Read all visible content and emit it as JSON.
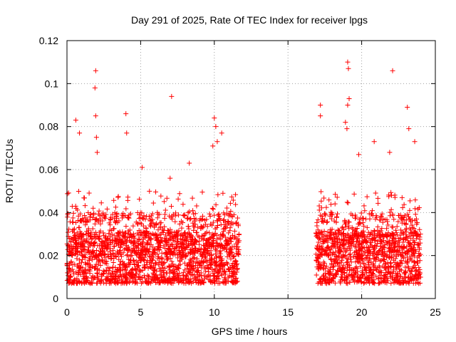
{
  "chart_data": {
    "type": "scatter",
    "title": "Day 291 of 2025, Rate Of TEC Index for receiver lpgs",
    "xlabel": "GPS time / hours",
    "ylabel": "ROTI / TECUs",
    "xlim": [
      0,
      25
    ],
    "ylim": [
      0,
      0.12
    ],
    "xticks": [
      0,
      5,
      10,
      15,
      20,
      25
    ],
    "xtick_labels": [
      "0",
      "5",
      "10",
      "15",
      "20",
      "25"
    ],
    "yticks": [
      0,
      0.02,
      0.04,
      0.06,
      0.08,
      0.1,
      0.12
    ],
    "ytick_labels": [
      "0",
      "0.02",
      "0.04",
      "0.06",
      "0.08",
      "0.1",
      "0.12"
    ],
    "grid": true,
    "marker": "+",
    "color": "#ff0000",
    "series": [
      {
        "name": "ROTI",
        "coverage": [
          [
            0.0,
            11.7
          ],
          [
            16.9,
            24.0
          ]
        ],
        "typical_range": [
          0.005,
          0.045
        ],
        "notable_points": [
          {
            "x": 0.6,
            "y": 0.083
          },
          {
            "x": 0.85,
            "y": 0.077
          },
          {
            "x": 1.95,
            "y": 0.106
          },
          {
            "x": 1.9,
            "y": 0.098
          },
          {
            "x": 1.95,
            "y": 0.085
          },
          {
            "x": 2.0,
            "y": 0.075
          },
          {
            "x": 2.05,
            "y": 0.068
          },
          {
            "x": 4.0,
            "y": 0.086
          },
          {
            "x": 4.05,
            "y": 0.077
          },
          {
            "x": 5.1,
            "y": 0.061
          },
          {
            "x": 7.1,
            "y": 0.094
          },
          {
            "x": 7.0,
            "y": 0.056
          },
          {
            "x": 8.3,
            "y": 0.063
          },
          {
            "x": 10.0,
            "y": 0.084
          },
          {
            "x": 10.1,
            "y": 0.08
          },
          {
            "x": 10.2,
            "y": 0.073
          },
          {
            "x": 10.5,
            "y": 0.077
          },
          {
            "x": 9.9,
            "y": 0.071
          },
          {
            "x": 17.2,
            "y": 0.09
          },
          {
            "x": 17.2,
            "y": 0.085
          },
          {
            "x": 19.05,
            "y": 0.11
          },
          {
            "x": 19.1,
            "y": 0.107
          },
          {
            "x": 19.15,
            "y": 0.093
          },
          {
            "x": 19.05,
            "y": 0.09
          },
          {
            "x": 18.9,
            "y": 0.082
          },
          {
            "x": 19.0,
            "y": 0.079
          },
          {
            "x": 19.8,
            "y": 0.067
          },
          {
            "x": 20.85,
            "y": 0.073
          },
          {
            "x": 21.9,
            "y": 0.068
          },
          {
            "x": 22.1,
            "y": 0.106
          },
          {
            "x": 23.1,
            "y": 0.089
          },
          {
            "x": 23.2,
            "y": 0.079
          },
          {
            "x": 23.6,
            "y": 0.073
          }
        ]
      }
    ]
  }
}
